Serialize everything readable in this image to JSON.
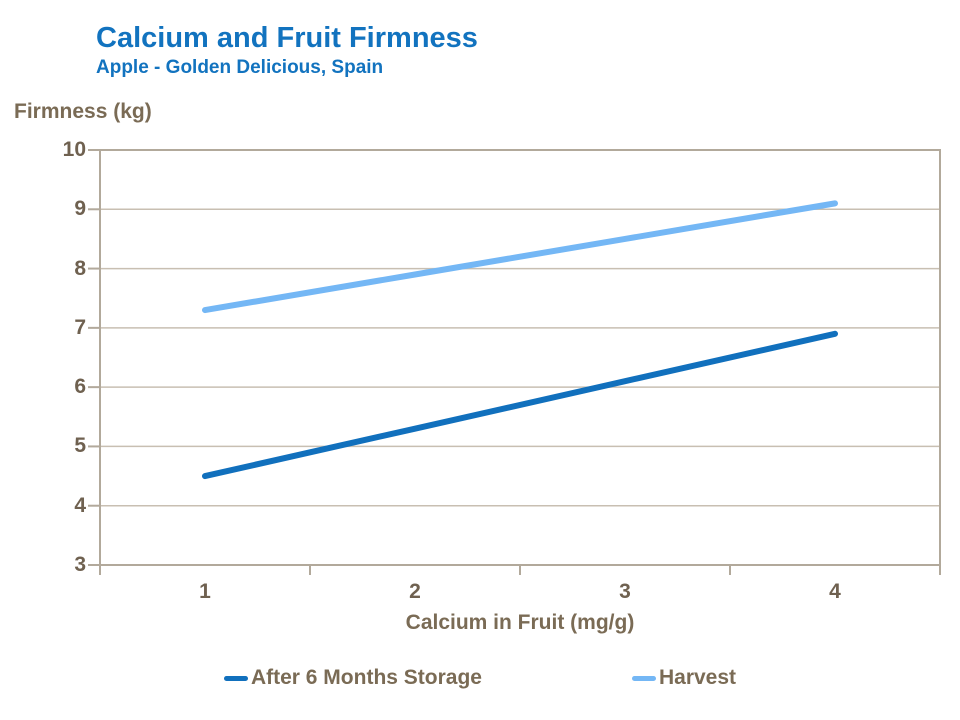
{
  "header": {
    "title": "Calcium and Fruit Firmness",
    "subtitle": "Apple - Golden Delicious, Spain"
  },
  "chart_data": {
    "type": "line",
    "title": "Calcium and Fruit Firmness",
    "subtitle": "Apple - Golden Delicious, Spain",
    "categories": [
      "1",
      "2",
      "3",
      "4"
    ],
    "series": [
      {
        "name": "After 6 Months Storage",
        "color": "#1170BD",
        "values": [
          4.5,
          5.3,
          6.1,
          6.9
        ]
      },
      {
        "name": "Harvest",
        "color": "#74B7F5",
        "values": [
          7.3,
          7.9,
          8.5,
          9.1
        ]
      }
    ],
    "xlabel": "Calcium in Fruit (mg/g)",
    "ylabel": "Firmness (kg)",
    "ylim": [
      3,
      10
    ],
    "ytick_step": 1,
    "grid": true,
    "legend_position": "bottom"
  },
  "colors": {
    "title_blue": "#1273BF",
    "tick_text": "#6F6150",
    "axis_title_text": "#7A6B55",
    "gridline": "#C8BFB2",
    "axis_border": "#B2A99B",
    "storage_line": "#1170BD",
    "harvest_line": "#74B7F5",
    "background": "#FFFFFF"
  }
}
